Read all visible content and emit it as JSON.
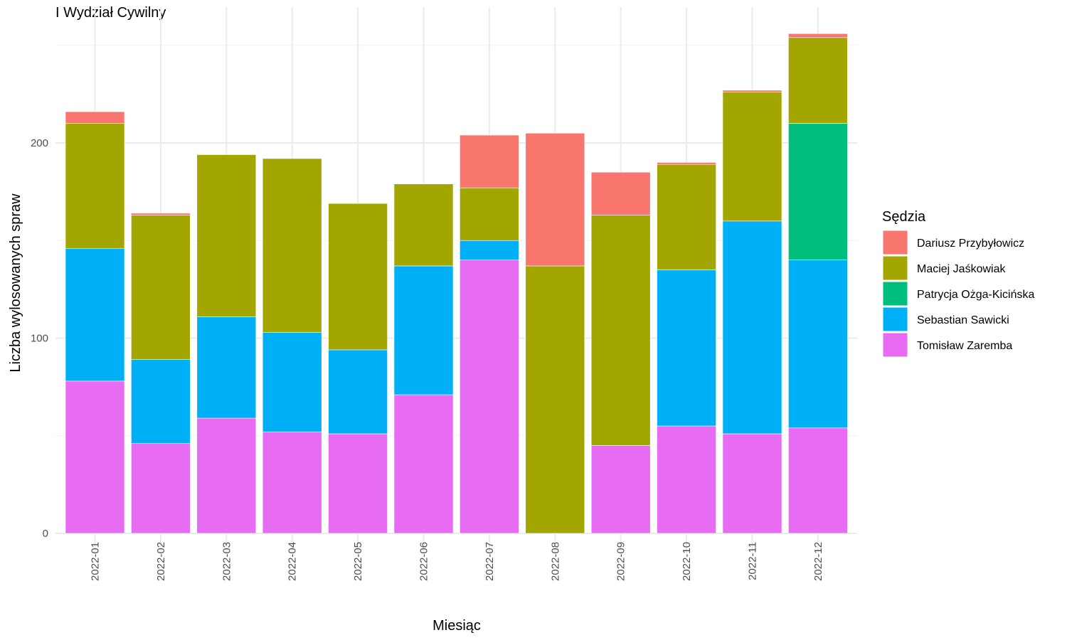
{
  "chart_data": {
    "type": "bar",
    "stacked": true,
    "title": "I Wydział Cywilny",
    "xlabel": "Miesiąc",
    "ylabel": "Liczba wylosowanych spraw",
    "ylim": [
      0,
      255
    ],
    "yticks": [
      0,
      100,
      200
    ],
    "grid": true,
    "legend_title": "Sędzia",
    "legend_position": "right",
    "categories": [
      "2022-01",
      "2022-02",
      "2022-03",
      "2022-04",
      "2022-05",
      "2022-06",
      "2022-07",
      "2022-08",
      "2022-09",
      "2022-10",
      "2022-11",
      "2022-12"
    ],
    "series": [
      {
        "name": "Tomisław Zaremba",
        "color": "#E76BF3",
        "values": [
          78,
          46,
          59,
          52,
          51,
          71,
          140,
          0,
          45,
          55,
          51,
          54
        ]
      },
      {
        "name": "Sebastian Sawicki",
        "color": "#00B0F6",
        "values": [
          68,
          43,
          52,
          51,
          43,
          66,
          10,
          0,
          0,
          80,
          109,
          86
        ]
      },
      {
        "name": "Patrycja Ożga-Kicińska",
        "color": "#00BF7D",
        "values": [
          0,
          0,
          0,
          0,
          0,
          0,
          0,
          0,
          0,
          0,
          0,
          70
        ]
      },
      {
        "name": "Maciej Jaśkowiak",
        "color": "#A3A500",
        "values": [
          64,
          74,
          83,
          89,
          75,
          42,
          27,
          137,
          118,
          54,
          66,
          44
        ]
      },
      {
        "name": "Dariusz Przybyłowicz",
        "color": "#F8766D",
        "values": [
          6,
          1,
          0,
          0,
          0,
          0,
          27,
          68,
          22,
          1,
          1,
          2
        ]
      }
    ],
    "legend_order": [
      "Dariusz Przybyłowicz",
      "Maciej Jaśkowiak",
      "Patrycja Ożga-Kicińska",
      "Sebastian Sawicki",
      "Tomisław Zaremba"
    ]
  }
}
